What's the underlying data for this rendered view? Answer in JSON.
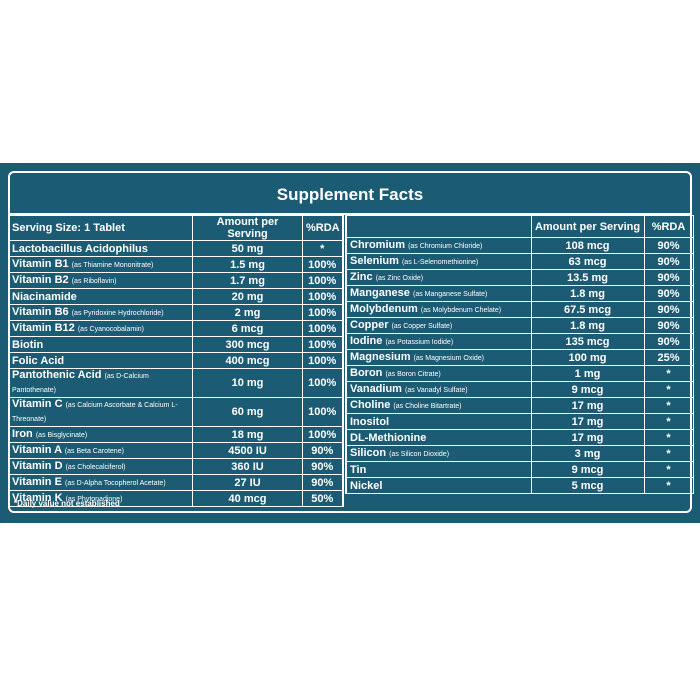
{
  "title": "Supplement Facts",
  "left_header": {
    "serving": "Serving Size: 1 Tablet",
    "amount": "Amount per Serving",
    "rda": "%RDA"
  },
  "right_header": {
    "amount": "Amount per Serving",
    "rda": "%RDA"
  },
  "left_rows": [
    {
      "name": "Lactobacillus Acidophilus",
      "amount": "50 mg",
      "rda": "*"
    },
    {
      "name": "Vitamin B1",
      "note": "(as Thiamine Mononitrate)",
      "amount": "1.5 mg",
      "rda": "100%"
    },
    {
      "name": "Vitamin B2",
      "note": "(as Riboflavin)",
      "amount": "1.7 mg",
      "rda": "100%"
    },
    {
      "name": "Niacinamide",
      "amount": "20 mg",
      "rda": "100%"
    },
    {
      "name": "Vitamin B6",
      "note": "(as Pyridoxine Hydrochloride)",
      "amount": "2 mg",
      "rda": "100%"
    },
    {
      "name": "Vitamin B12",
      "note": "(as Cyanocobalamin)",
      "amount": "6 mcg",
      "rda": "100%"
    },
    {
      "name": "Biotin",
      "amount": "300 mcg",
      "rda": "100%"
    },
    {
      "name": "Folic Acid",
      "amount": "400 mcg",
      "rda": "100%"
    },
    {
      "name": "Pantothenic Acid",
      "note": "(as D-Calcium Pantothenate)",
      "amount": "10 mg",
      "rda": "100%"
    },
    {
      "name": "Vitamin C",
      "note": "(as Calcium Ascorbate & Calcium L-Threonate)",
      "amount": "60 mg",
      "rda": "100%"
    },
    {
      "name": "Iron",
      "note": "(as Bisglycinate)",
      "amount": "18 mg",
      "rda": "100%"
    },
    {
      "name": "Vitamin A",
      "note": "(as Beta Carotene)",
      "amount": "4500 IU",
      "rda": "90%"
    },
    {
      "name": "Vitamin D",
      "note": "(as Cholecalciferol)",
      "amount": "360 IU",
      "rda": "90%"
    },
    {
      "name": "Vitamin E",
      "note": "(as D-Alpha Tocopherol Acetate)",
      "amount": "27 IU",
      "rda": "90%"
    },
    {
      "name": "Vitamin K",
      "note": "(as Phytonadione)",
      "amount": "40 mcg",
      "rda": "50%"
    }
  ],
  "right_rows": [
    {
      "name": "Chromium",
      "note": "(as Chromium Chloride)",
      "amount": "108 mcg",
      "rda": "90%"
    },
    {
      "name": "Selenium",
      "note": "(as L-Selenomethionine)",
      "amount": "63 mcg",
      "rda": "90%"
    },
    {
      "name": "Zinc",
      "note": "(as Zinc Oxide)",
      "amount": "13.5 mg",
      "rda": "90%"
    },
    {
      "name": "Manganese",
      "note": "(as Manganese Sulfate)",
      "amount": "1.8 mg",
      "rda": "90%"
    },
    {
      "name": "Molybdenum",
      "note": "(as Molybdenum Chelate)",
      "amount": "67.5 mcg",
      "rda": "90%"
    },
    {
      "name": "Copper",
      "note": "(as Copper Sulfate)",
      "amount": "1.8 mg",
      "rda": "90%"
    },
    {
      "name": "Iodine",
      "note": "(as Potassium Iodide)",
      "amount": "135 mcg",
      "rda": "90%"
    },
    {
      "name": "Magnesium",
      "note": "(as Magnesium Oxide)",
      "amount": "100 mg",
      "rda": "25%"
    },
    {
      "name": "Boron",
      "note": "(as Boron Citrate)",
      "amount": "1 mg",
      "rda": "*"
    },
    {
      "name": "Vanadium",
      "note": "(as Vanadyl Sulfate)",
      "amount": "9 mcg",
      "rda": "*"
    },
    {
      "name": "Choline",
      "note": "(as Choline Bitartrate)",
      "amount": "17 mg",
      "rda": "*"
    },
    {
      "name": "Inositol",
      "amount": "17 mg",
      "rda": "*"
    },
    {
      "name": "DL-Methionine",
      "amount": "17 mg",
      "rda": "*"
    },
    {
      "name": "Silicon",
      "note": "(as Silicon Dioxide)",
      "amount": "3 mg",
      "rda": "*"
    },
    {
      "name": "Tin",
      "amount": "9 mcg",
      "rda": "*"
    },
    {
      "name": "Nickel",
      "amount": "5 mcg",
      "rda": "*"
    }
  ],
  "footnote": "*Daily value not established"
}
